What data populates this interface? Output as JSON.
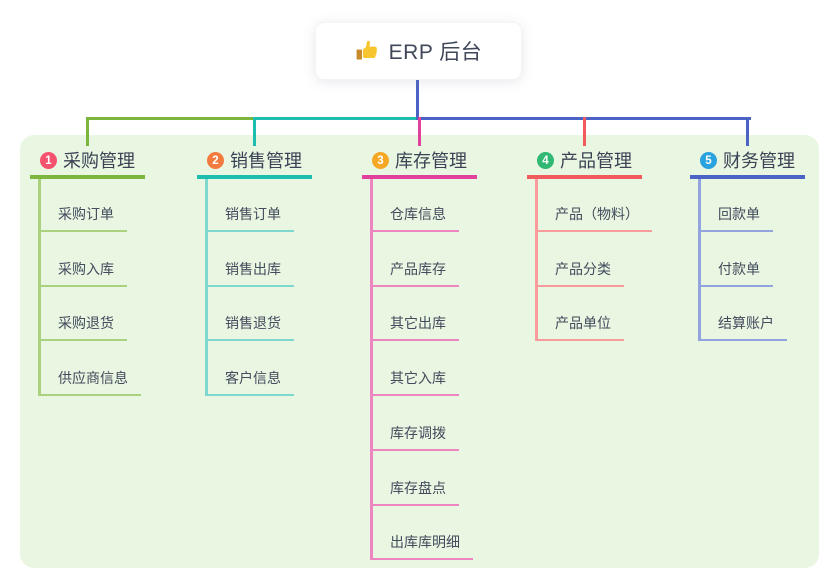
{
  "root": {
    "label": "ERP 后台",
    "icon": "thumbs-up-icon"
  },
  "colors": {
    "page_bg": "#ffffff",
    "panel_bg": "#e9f6e2",
    "connector": "#4b63c5",
    "title_text": "#3a4254",
    "child_text": "#434b5c",
    "root_text": "#3f4759",
    "thumb_yellow": "#f7c52d",
    "thumb_cuff": "#c98a2c"
  },
  "branches": [
    {
      "badge": "1",
      "badge_color": "#f4526d",
      "line_color": "#7db63e",
      "line_light": "#a9d17e",
      "label": "采购管理",
      "children": [
        "采购订单",
        "采购入库",
        "采购退货",
        "供应商信息"
      ]
    },
    {
      "badge": "2",
      "badge_color": "#f37b3f",
      "line_color": "#1dbdb0",
      "line_light": "#7fd8cf",
      "label": "销售管理",
      "children": [
        "销售订单",
        "销售出库",
        "销售退货",
        "客户信息"
      ]
    },
    {
      "badge": "3",
      "badge_color": "#f6a723",
      "line_color": "#e1419d",
      "line_light": "#ec85c0",
      "label": "库存管理",
      "children": [
        "仓库信息",
        "产品库存",
        "其它出库",
        "其它入库",
        "库存调拨",
        "库存盘点",
        "出库库明细"
      ]
    },
    {
      "badge": "4",
      "badge_color": "#31b873",
      "line_color": "#f25b5e",
      "line_light": "#f79b9d",
      "label": "产品管理",
      "children": [
        "产品（物料）",
        "产品分类",
        "产品单位"
      ]
    },
    {
      "badge": "5",
      "badge_color": "#2aa2de",
      "line_color": "#4b63c5",
      "line_light": "#92a3de",
      "label": "财务管理",
      "children": [
        "回款单",
        "付款单",
        "结算账户"
      ]
    }
  ]
}
